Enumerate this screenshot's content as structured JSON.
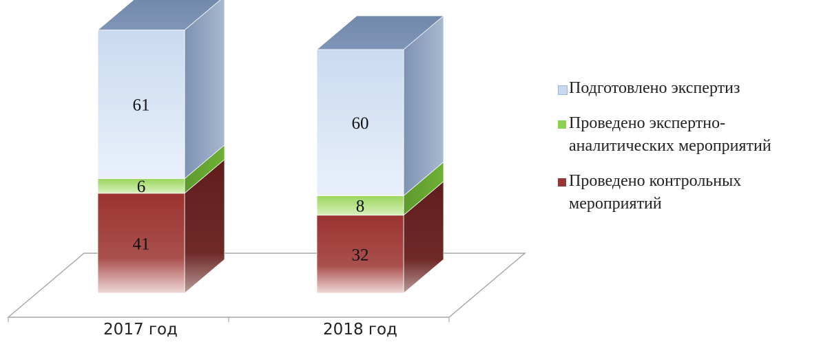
{
  "chart_data": {
    "type": "bar",
    "stacked": true,
    "three_d": true,
    "categories": [
      "2017 год",
      "2018 год"
    ],
    "series": [
      {
        "name": "Проведено контрольных мероприятий",
        "values": [
          41,
          32
        ],
        "color": "#953735"
      },
      {
        "name": "Проведено экспертно-аналитических мероприятий",
        "values": [
          6,
          8
        ],
        "color": "#8fd14f"
      },
      {
        "name": "Подготовлено экспертиз",
        "values": [
          61,
          60
        ],
        "color": "#c6d9f1"
      }
    ],
    "legend_position": "right",
    "title": "",
    "xlabel": "",
    "ylabel": "",
    "grid": false
  }
}
